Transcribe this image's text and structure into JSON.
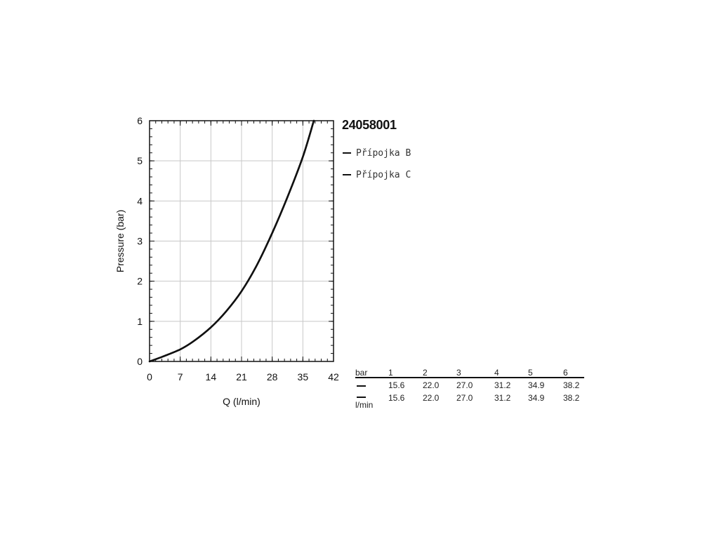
{
  "chart_data": {
    "type": "line",
    "id_label": "24058001",
    "xlabel": "Q (l/min)",
    "ylabel": "Pressure (bar)",
    "xlim": [
      0,
      42
    ],
    "ylim": [
      0,
      6
    ],
    "x_ticks": [
      0,
      7,
      14,
      21,
      28,
      35,
      42
    ],
    "y_ticks": [
      0,
      1,
      2,
      3,
      4,
      5,
      6
    ],
    "grid": true,
    "legend_position": "right",
    "series": [
      {
        "name": "Přípojka B",
        "color": "#111111",
        "x": [
          0,
          3,
          7,
          10,
          14,
          17.5,
          21,
          24.5,
          28,
          31.5,
          35,
          37.5
        ],
        "y": [
          0,
          0.12,
          0.3,
          0.5,
          0.85,
          1.25,
          1.75,
          2.4,
          3.2,
          4.1,
          5.1,
          6.0
        ]
      },
      {
        "name": "Přípojka C",
        "color": "#111111",
        "x": [
          0,
          3,
          7,
          10,
          14,
          17.5,
          21,
          24.5,
          28,
          31.5,
          35,
          37.5
        ],
        "y": [
          0,
          0.12,
          0.3,
          0.5,
          0.85,
          1.25,
          1.75,
          2.4,
          3.2,
          4.1,
          5.1,
          6.0
        ]
      }
    ]
  },
  "table": {
    "unit_pressure": "bar",
    "unit_flow": "l/min",
    "pressures": [
      "1",
      "2",
      "3",
      "4",
      "5",
      "6"
    ],
    "rows": [
      {
        "series": "Přípojka B",
        "values": [
          "15.6",
          "22.0",
          "27.0",
          "31.2",
          "34.9",
          "38.2"
        ]
      },
      {
        "series": "Přípojka C",
        "values": [
          "15.6",
          "22.0",
          "27.0",
          "31.2",
          "34.9",
          "38.2"
        ]
      }
    ]
  }
}
